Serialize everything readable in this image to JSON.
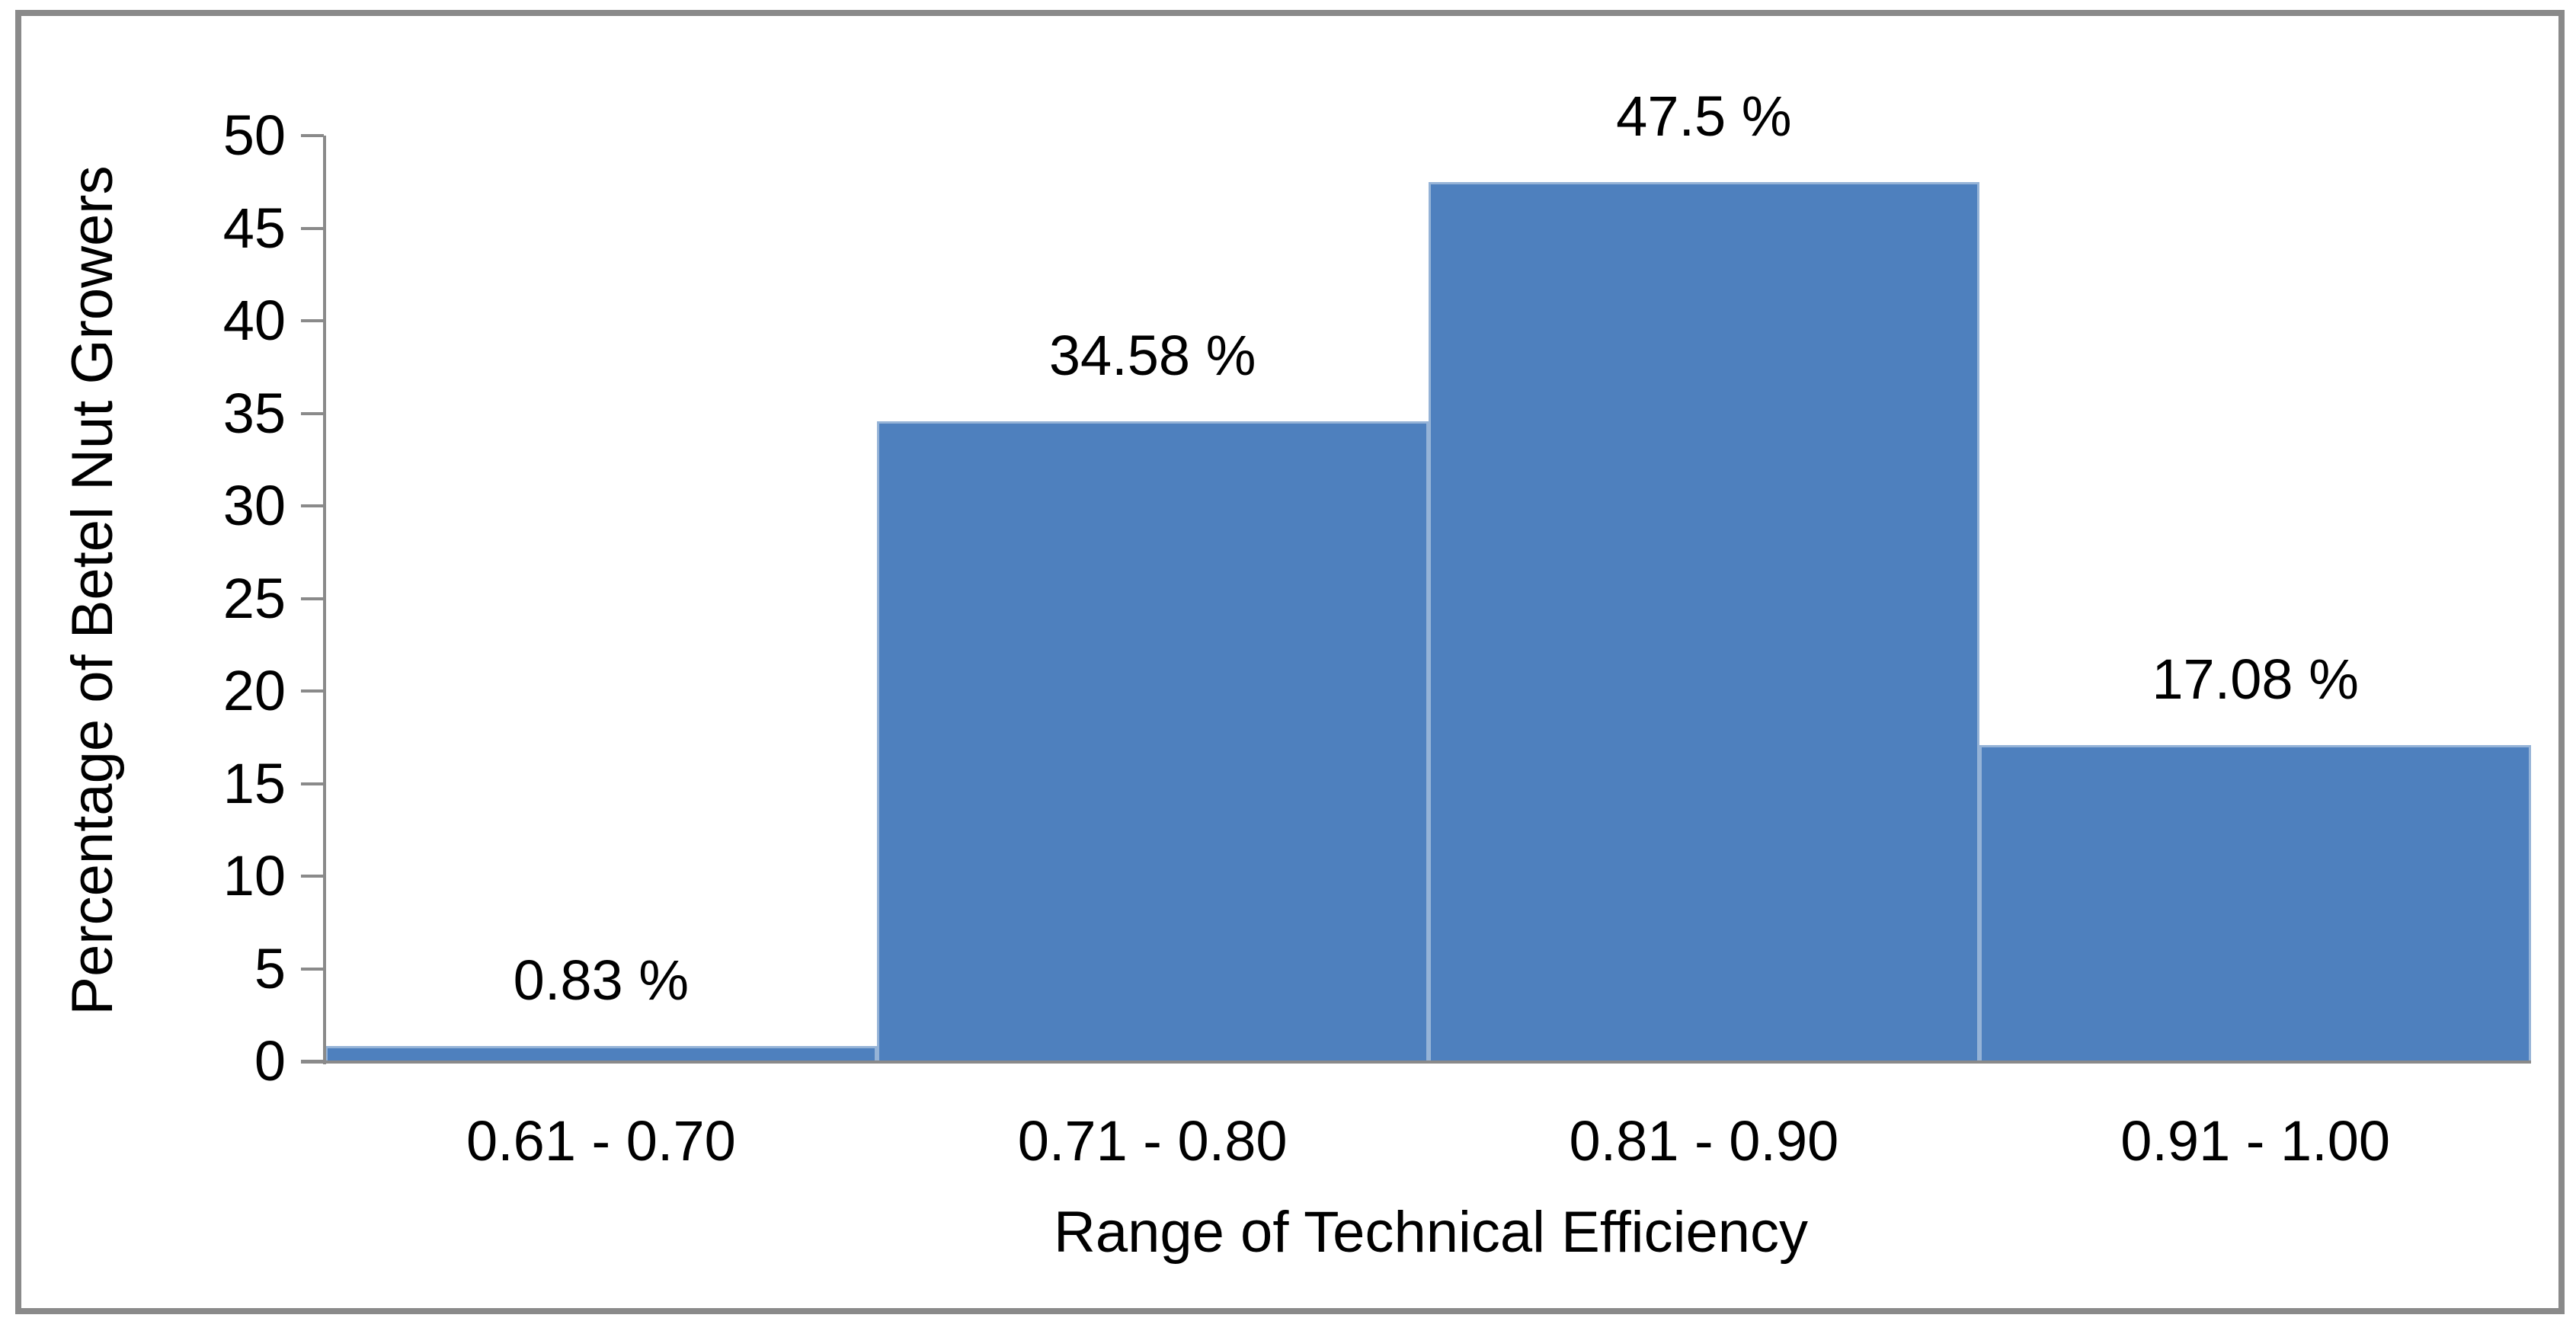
{
  "chart_data": {
    "type": "bar",
    "title": "",
    "categories": [
      "0.61 - 0.70",
      "0.71 - 0.80",
      "0.81 - 0.90",
      "0.91 - 1.00"
    ],
    "values": [
      0.83,
      34.58,
      47.5,
      17.08
    ],
    "value_labels": [
      "0.83 %",
      "34.58 %",
      "47.5 %",
      "17.08 %"
    ],
    "xlabel": "Range of Technical Efficiency",
    "ylabel": "Percentage of Betel Nut Growers",
    "ylim": [
      0,
      50
    ],
    "yticks": [
      0,
      5,
      10,
      15,
      20,
      25,
      30,
      35,
      40,
      45,
      50
    ],
    "grid": "off",
    "legend": "none",
    "bar_gap": "none",
    "colors": {
      "bar_fill": "#4E80BE",
      "bar_border": "#95B3D7",
      "axis_line": "#8A8A8A",
      "text": "#000000",
      "frame_border": "#8A8A8A",
      "background": "#FFFFFF"
    }
  }
}
